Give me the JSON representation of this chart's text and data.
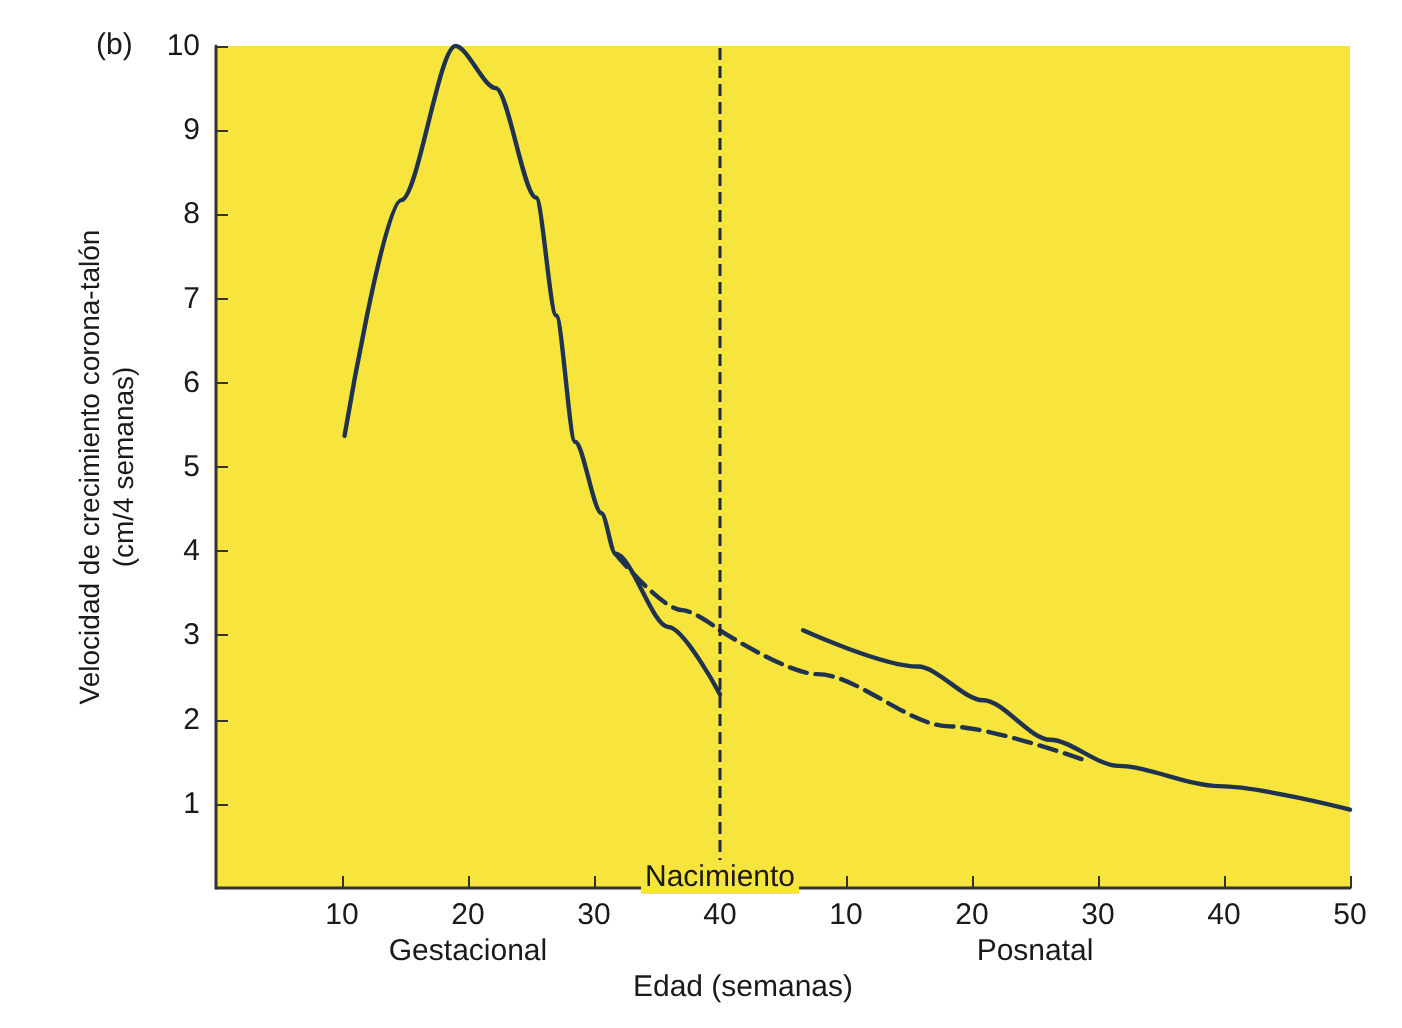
{
  "chart_data": [
    {
      "type": "line",
      "ylabel": "Velocidad de crecimiento corona-talón\n(cm/4 semanas)",
      "annotations": [
        "(b)",
        "Gestacional"
      ],
      "xlim": [
        0,
        40
      ],
      "xticks": [
        10,
        20,
        30,
        40
      ],
      "ylim": [
        0,
        10
      ],
      "yticks": [
        1,
        2,
        3,
        4,
        5,
        6,
        7,
        8,
        9,
        10
      ],
      "grid": false,
      "marker": "none",
      "ref_lines": [
        {
          "axis": "x",
          "value": 40,
          "label": "Nacimiento",
          "color": "#1f2a3a",
          "line_style": "dashed"
        }
      ],
      "series": [
        {
          "color": "#1f3350",
          "line_style": "solid",
          "x": [
            10.2,
            14.7,
            19,
            22.2,
            25.4,
            27,
            28.5,
            30.6,
            31.7,
            35.9,
            40
          ],
          "values": [
            5.37,
            8.17,
            10,
            9.5,
            8.2,
            6.8,
            5.3,
            4.45,
            3.97,
            3.1,
            2.3
          ]
        },
        {
          "color": "#1f3350",
          "line_style": "dashed",
          "x": [
            31.7,
            37,
            40
          ],
          "values": [
            3.97,
            3.3,
            3.06
          ]
        }
      ]
    },
    {
      "type": "line",
      "xlabel": "Edad (semanas)",
      "annotations": [
        "Posnatal"
      ],
      "tick_labels": "x",
      "xlim": [
        0,
        50
      ],
      "xticks": [
        10,
        20,
        30,
        40,
        50
      ],
      "ylim": [
        0,
        10
      ],
      "grid": false,
      "marker": "none",
      "series": [
        {
          "color": "#1f3350",
          "line_style": "dashed",
          "x": [
            0,
            7.7,
            18.2,
            28.9
          ],
          "values": [
            3.06,
            2.54,
            1.92,
            1.52
          ]
        },
        {
          "color": "#1f3350",
          "line_style": "solid",
          "x": [
            6.6,
            15.7,
            20.9,
            26.2,
            31.6,
            39.6,
            50
          ],
          "values": [
            3.06,
            2.63,
            2.23,
            1.76,
            1.45,
            1.21,
            0.93
          ]
        }
      ]
    }
  ]
}
